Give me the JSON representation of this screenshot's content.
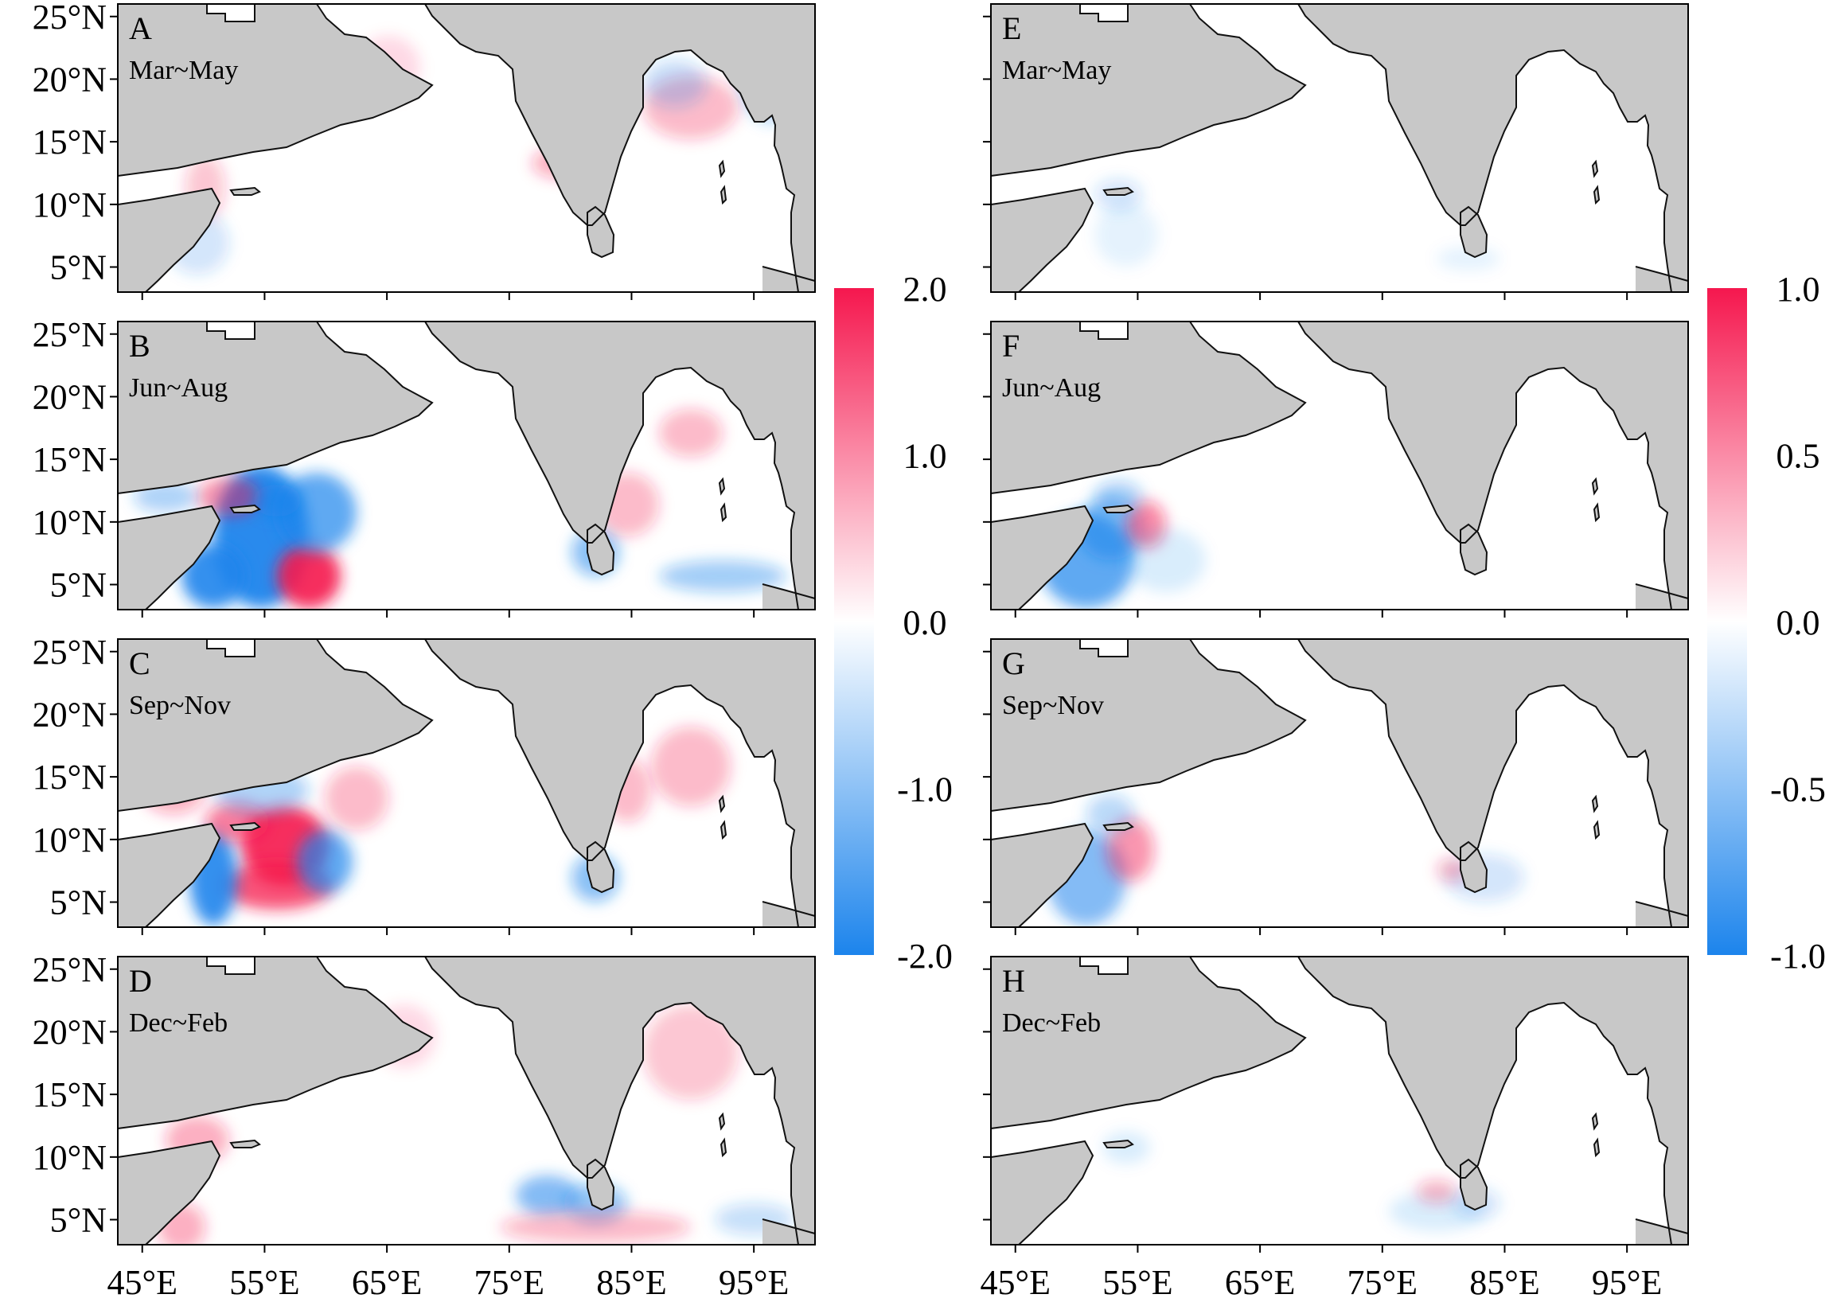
{
  "figure": {
    "ocean_color": "#ffffff",
    "land_color": "#c8c8c8",
    "colormap": [
      "#1c84ec",
      "#ffffff",
      "#f5174e"
    ],
    "y_tick_labels": [
      "25°N",
      "20°N",
      "15°N",
      "10°N",
      "5°N"
    ],
    "y_tick_values": [
      25,
      20,
      15,
      10,
      5
    ],
    "x_tick_labels": [
      "45°E",
      "55°E",
      "65°E",
      "75°E",
      "85°E",
      "95°E"
    ],
    "x_tick_values": [
      45,
      55,
      65,
      75,
      85,
      95
    ],
    "lon_range": [
      43,
      100
    ],
    "lat_range": [
      3,
      26
    ]
  },
  "panels": [
    {
      "letter": "A",
      "season": "Mar~May"
    },
    {
      "letter": "B",
      "season": "Jun~Aug"
    },
    {
      "letter": "C",
      "season": "Sep~Nov"
    },
    {
      "letter": "D",
      "season": "Dec~Feb"
    },
    {
      "letter": "E",
      "season": "Mar~May"
    },
    {
      "letter": "F",
      "season": "Jun~Aug"
    },
    {
      "letter": "G",
      "season": "Sep~Nov"
    },
    {
      "letter": "H",
      "season": "Dec~Feb"
    }
  ],
  "colorbars": [
    {
      "labels": [
        "2.0",
        "1.0",
        "0.0",
        "-1.0",
        "-2.0"
      ],
      "values": [
        2.0,
        1.0,
        0.0,
        -1.0,
        -2.0
      ],
      "range": [
        -2.0,
        2.0
      ]
    },
    {
      "labels": [
        "1.0",
        "0.5",
        "0.0",
        "-0.5",
        "-1.0"
      ],
      "values": [
        1.0,
        0.5,
        0.0,
        -0.5,
        -1.0
      ],
      "range": [
        -1.0,
        1.0
      ]
    }
  ]
}
